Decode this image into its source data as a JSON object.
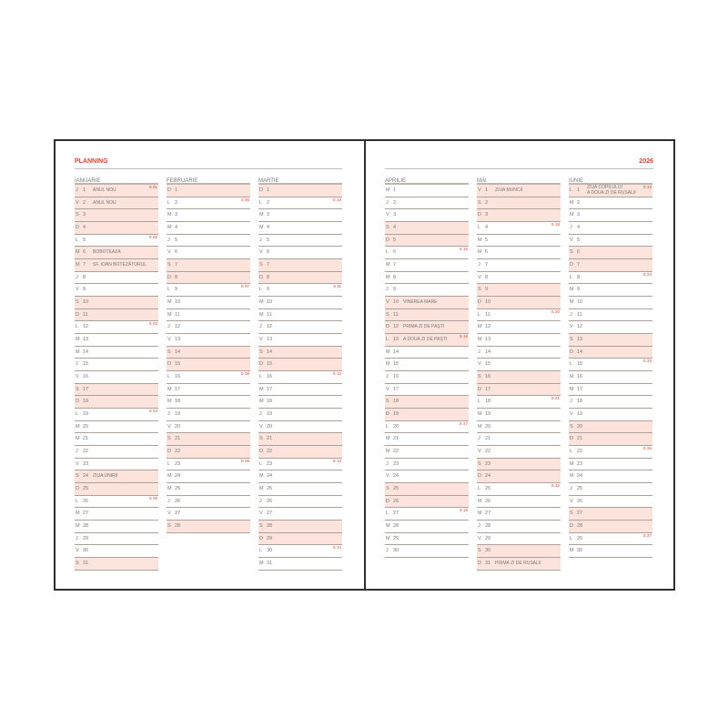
{
  "header": {
    "left_title": "PLANNING",
    "year": "2026"
  },
  "colors": {
    "accent": "#d9432e",
    "shade": "#fce4dc"
  },
  "months": [
    {
      "name": "IANUARIE",
      "days": [
        [
          "J",
          1,
          "ANUL NOU",
          "S 01"
        ],
        [
          "V",
          2,
          "ANUL NOU",
          ""
        ],
        [
          "S",
          3,
          "",
          ""
        ],
        [
          "D",
          4,
          "",
          ""
        ],
        [
          "L",
          5,
          "",
          "S 02"
        ],
        [
          "M",
          6,
          "BOBOTEAZA",
          ""
        ],
        [
          "M",
          7,
          "SF. IOAN BOTEZĂTORUL",
          ""
        ],
        [
          "J",
          8,
          "",
          ""
        ],
        [
          "V",
          9,
          "",
          ""
        ],
        [
          "S",
          10,
          "",
          ""
        ],
        [
          "D",
          11,
          "",
          ""
        ],
        [
          "L",
          12,
          "",
          "S 03"
        ],
        [
          "M",
          13,
          "",
          ""
        ],
        [
          "M",
          14,
          "",
          ""
        ],
        [
          "J",
          15,
          "",
          ""
        ],
        [
          "V",
          16,
          "",
          ""
        ],
        [
          "S",
          17,
          "",
          ""
        ],
        [
          "D",
          18,
          "",
          ""
        ],
        [
          "L",
          19,
          "",
          "S 04"
        ],
        [
          "M",
          20,
          "",
          ""
        ],
        [
          "M",
          21,
          "",
          ""
        ],
        [
          "J",
          22,
          "",
          ""
        ],
        [
          "V",
          23,
          "",
          ""
        ],
        [
          "S",
          24,
          "ZIUA UNIRII",
          ""
        ],
        [
          "D",
          25,
          "",
          ""
        ],
        [
          "L",
          26,
          "",
          "S 05"
        ],
        [
          "M",
          27,
          "",
          ""
        ],
        [
          "M",
          28,
          "",
          ""
        ],
        [
          "J",
          29,
          "",
          ""
        ],
        [
          "V",
          30,
          "",
          ""
        ],
        [
          "S",
          31,
          "",
          ""
        ]
      ]
    },
    {
      "name": "FEBRUARIE",
      "days": [
        [
          "D",
          1,
          "",
          ""
        ],
        [
          "L",
          2,
          "",
          "S 06"
        ],
        [
          "M",
          3,
          "",
          ""
        ],
        [
          "M",
          4,
          "",
          ""
        ],
        [
          "J",
          5,
          "",
          ""
        ],
        [
          "V",
          6,
          "",
          ""
        ],
        [
          "S",
          7,
          "",
          ""
        ],
        [
          "D",
          8,
          "",
          ""
        ],
        [
          "L",
          9,
          "",
          "S 07"
        ],
        [
          "M",
          10,
          "",
          ""
        ],
        [
          "M",
          11,
          "",
          ""
        ],
        [
          "J",
          12,
          "",
          ""
        ],
        [
          "V",
          13,
          "",
          ""
        ],
        [
          "S",
          14,
          "",
          ""
        ],
        [
          "D",
          15,
          "",
          ""
        ],
        [
          "L",
          16,
          "",
          "S 08"
        ],
        [
          "M",
          17,
          "",
          ""
        ],
        [
          "M",
          18,
          "",
          ""
        ],
        [
          "J",
          19,
          "",
          ""
        ],
        [
          "V",
          20,
          "",
          ""
        ],
        [
          "S",
          21,
          "",
          ""
        ],
        [
          "D",
          22,
          "",
          ""
        ],
        [
          "L",
          23,
          "",
          "S 09"
        ],
        [
          "M",
          24,
          "",
          ""
        ],
        [
          "M",
          25,
          "",
          ""
        ],
        [
          "J",
          26,
          "",
          ""
        ],
        [
          "V",
          27,
          "",
          ""
        ],
        [
          "S",
          28,
          "",
          ""
        ]
      ]
    },
    {
      "name": "MARTIE",
      "days": [
        [
          "D",
          1,
          "",
          ""
        ],
        [
          "L",
          2,
          "",
          "S 10"
        ],
        [
          "M",
          3,
          "",
          ""
        ],
        [
          "M",
          4,
          "",
          ""
        ],
        [
          "J",
          5,
          "",
          ""
        ],
        [
          "V",
          6,
          "",
          ""
        ],
        [
          "S",
          7,
          "",
          ""
        ],
        [
          "D",
          8,
          "",
          ""
        ],
        [
          "L",
          9,
          "",
          "S 11"
        ],
        [
          "M",
          10,
          "",
          ""
        ],
        [
          "M",
          11,
          "",
          ""
        ],
        [
          "J",
          12,
          "",
          ""
        ],
        [
          "V",
          13,
          "",
          ""
        ],
        [
          "S",
          14,
          "",
          ""
        ],
        [
          "D",
          15,
          "",
          ""
        ],
        [
          "L",
          16,
          "",
          "S 12"
        ],
        [
          "M",
          17,
          "",
          ""
        ],
        [
          "M",
          18,
          "",
          ""
        ],
        [
          "J",
          19,
          "",
          ""
        ],
        [
          "V",
          20,
          "",
          ""
        ],
        [
          "S",
          21,
          "",
          ""
        ],
        [
          "D",
          22,
          "",
          ""
        ],
        [
          "L",
          23,
          "",
          "S 13"
        ],
        [
          "M",
          24,
          "",
          ""
        ],
        [
          "M",
          25,
          "",
          ""
        ],
        [
          "J",
          26,
          "",
          ""
        ],
        [
          "V",
          27,
          "",
          ""
        ],
        [
          "S",
          28,
          "",
          ""
        ],
        [
          "D",
          29,
          "",
          ""
        ],
        [
          "L",
          30,
          "",
          "S 14"
        ],
        [
          "M",
          31,
          "",
          ""
        ]
      ]
    },
    {
      "name": "APRILIE",
      "days": [
        [
          "M",
          1,
          "",
          ""
        ],
        [
          "J",
          2,
          "",
          ""
        ],
        [
          "V",
          3,
          "",
          ""
        ],
        [
          "S",
          4,
          "",
          ""
        ],
        [
          "D",
          5,
          "",
          ""
        ],
        [
          "L",
          6,
          "",
          "S 15"
        ],
        [
          "M",
          7,
          "",
          ""
        ],
        [
          "M",
          8,
          "",
          ""
        ],
        [
          "J",
          9,
          "",
          ""
        ],
        [
          "V",
          10,
          "VINEREA MARE",
          ""
        ],
        [
          "S",
          11,
          "",
          ""
        ],
        [
          "D",
          12,
          "PRIMA ZI DE PAȘTI",
          ""
        ],
        [
          "L",
          13,
          "A DOUA ZI DE PAȘTI",
          "S 16"
        ],
        [
          "M",
          14,
          "",
          ""
        ],
        [
          "M",
          15,
          "",
          ""
        ],
        [
          "J",
          16,
          "",
          ""
        ],
        [
          "V",
          17,
          "",
          ""
        ],
        [
          "S",
          18,
          "",
          ""
        ],
        [
          "D",
          19,
          "",
          ""
        ],
        [
          "L",
          20,
          "",
          "S 17"
        ],
        [
          "M",
          21,
          "",
          ""
        ],
        [
          "M",
          22,
          "",
          ""
        ],
        [
          "J",
          23,
          "",
          ""
        ],
        [
          "V",
          24,
          "",
          ""
        ],
        [
          "S",
          25,
          "",
          ""
        ],
        [
          "D",
          26,
          "",
          ""
        ],
        [
          "L",
          27,
          "",
          "S 18"
        ],
        [
          "M",
          28,
          "",
          ""
        ],
        [
          "M",
          29,
          "",
          ""
        ],
        [
          "J",
          30,
          "",
          ""
        ]
      ]
    },
    {
      "name": "MAI",
      "days": [
        [
          "V",
          1,
          "ZIUA MUNCII",
          ""
        ],
        [
          "S",
          2,
          "",
          ""
        ],
        [
          "D",
          3,
          "",
          ""
        ],
        [
          "L",
          4,
          "",
          "S 19"
        ],
        [
          "M",
          5,
          "",
          ""
        ],
        [
          "M",
          6,
          "",
          ""
        ],
        [
          "J",
          7,
          "",
          ""
        ],
        [
          "V",
          8,
          "",
          ""
        ],
        [
          "S",
          9,
          "",
          ""
        ],
        [
          "D",
          10,
          "",
          ""
        ],
        [
          "L",
          11,
          "",
          "S 20"
        ],
        [
          "M",
          12,
          "",
          ""
        ],
        [
          "M",
          13,
          "",
          ""
        ],
        [
          "J",
          14,
          "",
          ""
        ],
        [
          "V",
          15,
          "",
          ""
        ],
        [
          "S",
          16,
          "",
          ""
        ],
        [
          "D",
          17,
          "",
          ""
        ],
        [
          "L",
          18,
          "",
          "S 21"
        ],
        [
          "M",
          19,
          "",
          ""
        ],
        [
          "M",
          20,
          "",
          ""
        ],
        [
          "J",
          21,
          "",
          ""
        ],
        [
          "V",
          22,
          "",
          ""
        ],
        [
          "S",
          23,
          "",
          ""
        ],
        [
          "D",
          24,
          "",
          ""
        ],
        [
          "L",
          25,
          "",
          "S 22"
        ],
        [
          "M",
          26,
          "",
          ""
        ],
        [
          "M",
          27,
          "",
          ""
        ],
        [
          "J",
          28,
          "",
          ""
        ],
        [
          "V",
          29,
          "",
          ""
        ],
        [
          "S",
          30,
          "",
          ""
        ],
        [
          "D",
          31,
          "PRIMA ZI DE RUSALII",
          ""
        ]
      ]
    },
    {
      "name": "IUNIE",
      "days": [
        [
          "L",
          1,
          "ZIUA COPILULUI\nA DOUA ZI DE RUSALII",
          "S 23"
        ],
        [
          "M",
          2,
          "",
          ""
        ],
        [
          "M",
          3,
          "",
          ""
        ],
        [
          "J",
          4,
          "",
          ""
        ],
        [
          "V",
          5,
          "",
          ""
        ],
        [
          "S",
          6,
          "",
          ""
        ],
        [
          "D",
          7,
          "",
          ""
        ],
        [
          "L",
          8,
          "",
          "S 24"
        ],
        [
          "M",
          9,
          "",
          ""
        ],
        [
          "M",
          10,
          "",
          ""
        ],
        [
          "J",
          11,
          "",
          ""
        ],
        [
          "V",
          12,
          "",
          ""
        ],
        [
          "S",
          13,
          "",
          ""
        ],
        [
          "D",
          14,
          "",
          ""
        ],
        [
          "L",
          15,
          "",
          "S 25"
        ],
        [
          "M",
          16,
          "",
          ""
        ],
        [
          "M",
          17,
          "",
          ""
        ],
        [
          "J",
          18,
          "",
          ""
        ],
        [
          "V",
          19,
          "",
          ""
        ],
        [
          "S",
          20,
          "",
          ""
        ],
        [
          "D",
          21,
          "",
          ""
        ],
        [
          "L",
          22,
          "",
          "S 26"
        ],
        [
          "M",
          23,
          "",
          ""
        ],
        [
          "M",
          24,
          "",
          ""
        ],
        [
          "J",
          25,
          "",
          ""
        ],
        [
          "V",
          26,
          "",
          ""
        ],
        [
          "S",
          27,
          "",
          ""
        ],
        [
          "D",
          28,
          "",
          ""
        ],
        [
          "L",
          29,
          "",
          "S 27"
        ],
        [
          "M",
          30,
          "",
          ""
        ]
      ]
    }
  ]
}
